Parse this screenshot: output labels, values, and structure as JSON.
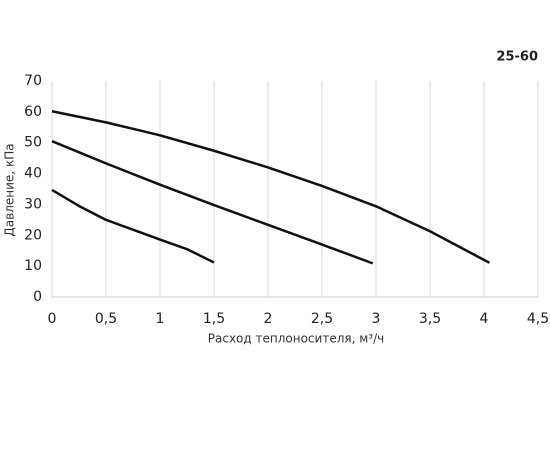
{
  "chart_data": {
    "type": "line",
    "title": "25-60",
    "x_label": "Расход теплоносителя, м³/ч",
    "y_label": "Давление, кПа",
    "xlim": [
      0,
      4.5
    ],
    "ylim": [
      0,
      70
    ],
    "xticks": [
      0,
      {
        "value": 0.5,
        "label": "0,5"
      },
      1,
      {
        "value": 1.5,
        "label": "1,5"
      },
      2,
      {
        "value": 2.5,
        "label": "2,5"
      },
      3,
      {
        "value": 3.5,
        "label": "3,5"
      },
      4,
      {
        "value": 4.5,
        "label": "4,5"
      }
    ],
    "yticks": [
      0,
      10,
      20,
      30,
      40,
      50,
      60,
      70
    ],
    "grid": "x",
    "series": [
      {
        "color": "#111111",
        "x": [
          0,
          0.25,
          0.5,
          0.75,
          1,
          1.25,
          1.5
        ],
        "values": [
          34.7,
          29.5,
          25,
          21.8,
          18.6,
          15.5,
          11.2
        ]
      },
      {
        "color": "#111111",
        "x": [
          0,
          0.5,
          1,
          1.5,
          2,
          2.5,
          2.97
        ],
        "values": [
          50.5,
          43.3,
          36.4,
          29.8,
          23.4,
          17,
          10.9
        ]
      },
      {
        "color": "#111111",
        "x": [
          0,
          0.5,
          1,
          1.5,
          2,
          2.5,
          3,
          3.5,
          4.05
        ],
        "values": [
          60.2,
          56.6,
          52.4,
          47.4,
          42,
          36,
          29.4,
          21.3,
          11.1
        ]
      }
    ]
  }
}
